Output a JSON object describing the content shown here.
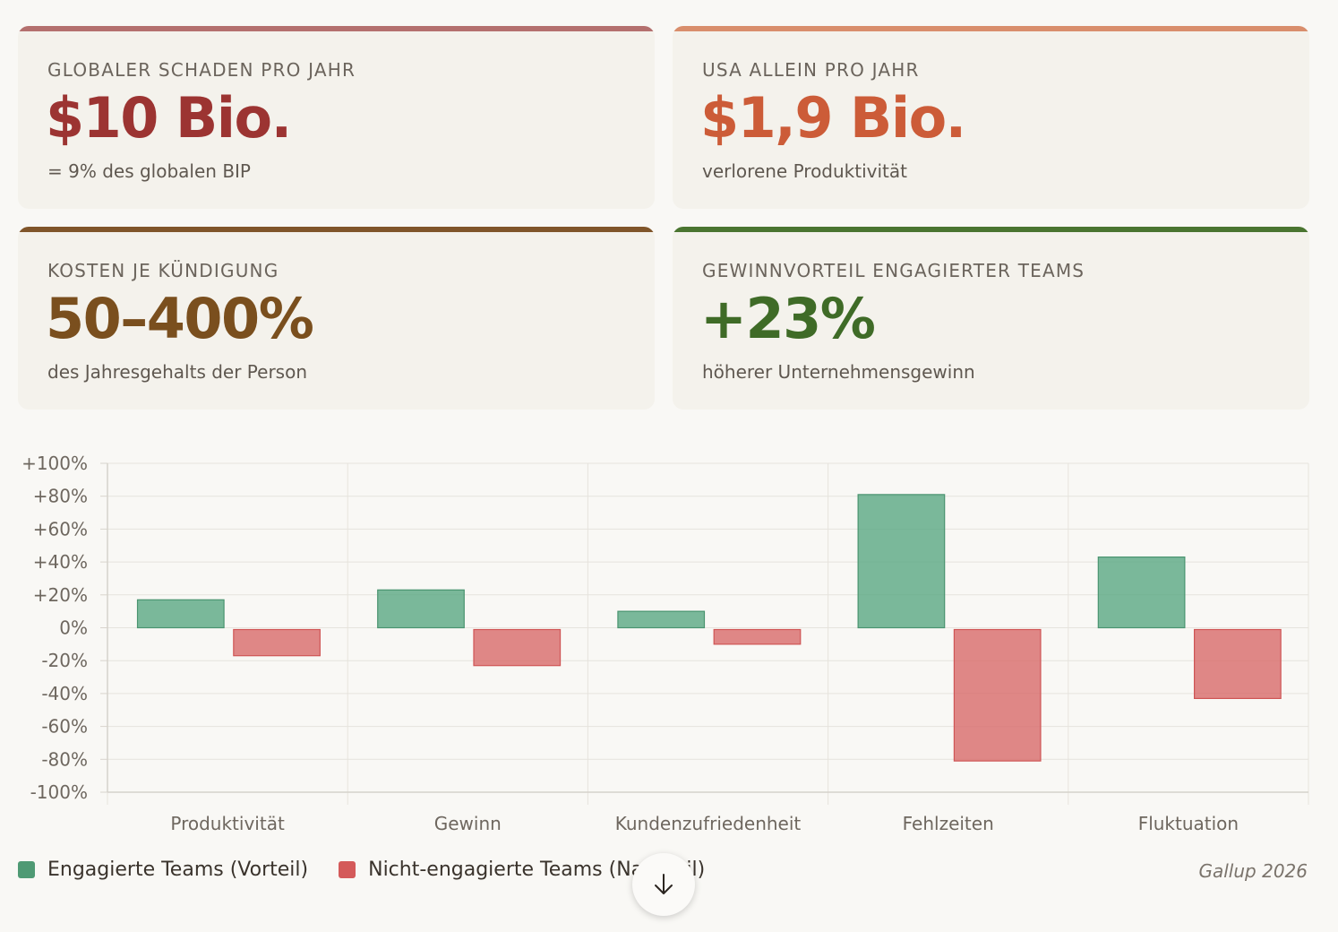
{
  "cards": [
    {
      "label": "GLOBALER SCHADEN PRO JAHR",
      "value": "$10 Bio.",
      "sub": "= 9% des globalen BIP",
      "bar_color": "#b4706e",
      "value_color": "#9c3432"
    },
    {
      "label": "USA ALLEIN PRO JAHR",
      "value": "$1,9 Bio.",
      "sub": "verlorene Produktivität",
      "bar_color": "#d98e6c",
      "value_color": "#cc5c38"
    },
    {
      "label": "KOSTEN JE KÜNDIGUNG",
      "value": "50–400%",
      "sub": "des Jahresgehalts der Person",
      "bar_color": "#80552a",
      "value_color": "#7a4f1e"
    },
    {
      "label": "GEWINNVORTEIL ENGAGIERTER TEAMS",
      "value": "+23%",
      "sub": "höherer Unternehmensgewinn",
      "bar_color": "#4a7530",
      "value_color": "#3f6b27"
    }
  ],
  "chart_data": {
    "type": "bar",
    "categories": [
      "Produktivität",
      "Gewinn",
      "Kundenzufriedenheit",
      "Fehlzeiten",
      "Fluktuation"
    ],
    "series": [
      {
        "name": "Engagierte Teams (Vorteil)",
        "values": [
          17,
          23,
          10,
          81,
          43
        ],
        "color": "#5aa783"
      },
      {
        "name": "Nicht-engagierte Teams (Nachteil)",
        "values": [
          -17,
          -23,
          -10,
          -81,
          -43
        ],
        "color": "#d86a6a"
      }
    ],
    "ylim": [
      -100,
      100
    ],
    "yticks": [
      "+100%",
      "+80%",
      "+60%",
      "+40%",
      "+20%",
      "0%",
      "-20%",
      "-40%",
      "-60%",
      "-80%",
      "-100%"
    ],
    "grid": true,
    "legend": "bottom-left"
  },
  "source": "Gallup 2026",
  "scroll_button_icon": "arrow-down-icon"
}
